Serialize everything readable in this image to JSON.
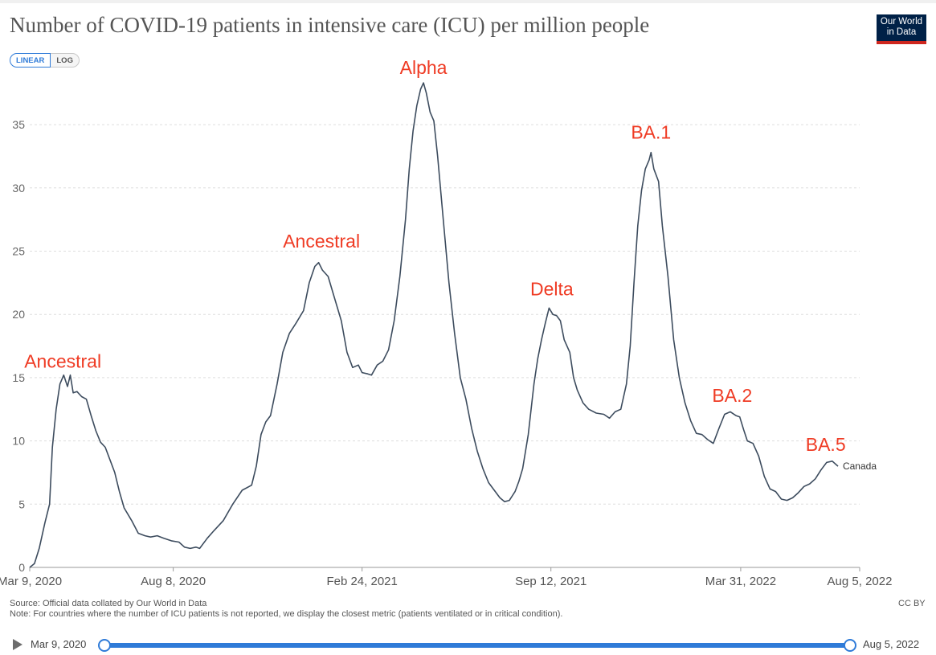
{
  "header": {
    "title": "Number of COVID-19 patients in intensive care (ICU) per million people",
    "logo_line1": "Our World",
    "logo_line2": "in Data"
  },
  "controls": {
    "linear_label": "LINEAR",
    "log_label": "LOG"
  },
  "footer": {
    "source": "Source: Official data collated by Our World in Data",
    "note": "Note: For countries where the number of ICU patients is not reported, we display the closest metric (patients ventilated or in critical condition).",
    "license": "CC BY"
  },
  "timeline": {
    "start_label": "Mar 9, 2020",
    "end_label": "Aug 5, 2022"
  },
  "colors": {
    "line": "#3d4c5e",
    "annotation": "#ef3b24",
    "accent": "#2f7bd8",
    "grid": "#dddddd"
  },
  "chart_data": {
    "type": "line",
    "title": "Number of COVID-19 patients in intensive care (ICU) per million people",
    "xlabel": "",
    "ylabel": "",
    "ylim": [
      0,
      38.5
    ],
    "yticks": [
      0,
      5,
      10,
      15,
      20,
      25,
      30,
      35
    ],
    "xlim_days": [
      0,
      879
    ],
    "xticks": [
      {
        "day": 0,
        "label": "Mar 9, 2020"
      },
      {
        "day": 152,
        "label": "Aug 8, 2020"
      },
      {
        "day": 352,
        "label": "Feb 24, 2021"
      },
      {
        "day": 552,
        "label": "Sep 12, 2021"
      },
      {
        "day": 753,
        "label": "Mar 31, 2022"
      },
      {
        "day": 879,
        "label": "Aug 5, 2022"
      }
    ],
    "grid": true,
    "series": [
      {
        "name": "Canada",
        "points": [
          [
            0,
            0
          ],
          [
            5,
            0.3
          ],
          [
            10,
            1.5
          ],
          [
            16,
            3.5
          ],
          [
            21,
            5
          ],
          [
            24,
            9.5
          ],
          [
            28,
            12.5
          ],
          [
            32,
            14.5
          ],
          [
            36,
            15.2
          ],
          [
            40,
            14.3
          ],
          [
            43,
            15.2
          ],
          [
            46,
            13.8
          ],
          [
            50,
            13.9
          ],
          [
            55,
            13.5
          ],
          [
            60,
            13.3
          ],
          [
            65,
            12
          ],
          [
            70,
            10.8
          ],
          [
            75,
            9.9
          ],
          [
            80,
            9.5
          ],
          [
            85,
            8.5
          ],
          [
            90,
            7.5
          ],
          [
            95,
            6
          ],
          [
            100,
            4.7
          ],
          [
            108,
            3.7
          ],
          [
            115,
            2.7
          ],
          [
            122,
            2.5
          ],
          [
            128,
            2.4
          ],
          [
            135,
            2.5
          ],
          [
            142,
            2.3
          ],
          [
            150,
            2.1
          ],
          [
            158,
            2.0
          ],
          [
            164,
            1.6
          ],
          [
            170,
            1.5
          ],
          [
            176,
            1.6
          ],
          [
            180,
            1.5
          ],
          [
            188,
            2.3
          ],
          [
            195,
            2.9
          ],
          [
            205,
            3.7
          ],
          [
            215,
            5.0
          ],
          [
            225,
            6.1
          ],
          [
            235,
            6.5
          ],
          [
            240,
            8
          ],
          [
            245,
            10.5
          ],
          [
            250,
            11.5
          ],
          [
            255,
            12
          ],
          [
            262,
            14.5
          ],
          [
            268,
            17.0
          ],
          [
            275,
            18.5
          ],
          [
            282,
            19.3
          ],
          [
            290,
            20.3
          ],
          [
            296,
            22.5
          ],
          [
            302,
            23.8
          ],
          [
            306,
            24.1
          ],
          [
            310,
            23.5
          ],
          [
            316,
            23.0
          ],
          [
            322,
            21.5
          ],
          [
            330,
            19.5
          ],
          [
            336,
            17.0
          ],
          [
            342,
            15.8
          ],
          [
            348,
            16.0
          ],
          [
            352,
            15.4
          ],
          [
            358,
            15.3
          ],
          [
            362,
            15.2
          ],
          [
            368,
            16.0
          ],
          [
            374,
            16.3
          ],
          [
            380,
            17.2
          ],
          [
            386,
            19.5
          ],
          [
            392,
            23.0
          ],
          [
            398,
            27.5
          ],
          [
            402,
            31.5
          ],
          [
            406,
            34.5
          ],
          [
            410,
            36.5
          ],
          [
            414,
            37.8
          ],
          [
            417,
            38.3
          ],
          [
            420,
            37.5
          ],
          [
            424,
            36.0
          ],
          [
            428,
            35.3
          ],
          [
            432,
            32.5
          ],
          [
            438,
            27.5
          ],
          [
            444,
            22.5
          ],
          [
            450,
            18.5
          ],
          [
            456,
            15.0
          ],
          [
            462,
            13.3
          ],
          [
            468,
            11.0
          ],
          [
            474,
            9.2
          ],
          [
            480,
            7.8
          ],
          [
            486,
            6.7
          ],
          [
            492,
            6.1
          ],
          [
            498,
            5.5
          ],
          [
            503,
            5.2
          ],
          [
            508,
            5.3
          ],
          [
            514,
            6.0
          ],
          [
            518,
            6.8
          ],
          [
            522,
            7.8
          ],
          [
            528,
            10.5
          ],
          [
            534,
            14.5
          ],
          [
            538,
            16.5
          ],
          [
            542,
            18.0
          ],
          [
            546,
            19.3
          ],
          [
            550,
            20.5
          ],
          [
            554,
            20.0
          ],
          [
            558,
            19.9
          ],
          [
            562,
            19.5
          ],
          [
            566,
            18.0
          ],
          [
            572,
            17.0
          ],
          [
            576,
            15.0
          ],
          [
            580,
            14.0
          ],
          [
            586,
            13.0
          ],
          [
            592,
            12.5
          ],
          [
            600,
            12.2
          ],
          [
            608,
            12.1
          ],
          [
            614,
            11.8
          ],
          [
            620,
            12.3
          ],
          [
            626,
            12.5
          ],
          [
            632,
            14.5
          ],
          [
            636,
            17.5
          ],
          [
            640,
            22.5
          ],
          [
            644,
            27.0
          ],
          [
            648,
            29.8
          ],
          [
            652,
            31.5
          ],
          [
            656,
            32.2
          ],
          [
            658,
            32.8
          ],
          [
            661,
            31.5
          ],
          [
            666,
            30.5
          ],
          [
            670,
            27.0
          ],
          [
            676,
            23.0
          ],
          [
            682,
            18.0
          ],
          [
            688,
            15.0
          ],
          [
            694,
            13.0
          ],
          [
            700,
            11.6
          ],
          [
            706,
            10.6
          ],
          [
            712,
            10.5
          ],
          [
            718,
            10.1
          ],
          [
            724,
            9.8
          ],
          [
            730,
            11.0
          ],
          [
            736,
            12.1
          ],
          [
            742,
            12.3
          ],
          [
            748,
            12.0
          ],
          [
            752,
            11.9
          ],
          [
            756,
            10.9
          ],
          [
            760,
            10.0
          ],
          [
            766,
            9.8
          ],
          [
            772,
            8.8
          ],
          [
            778,
            7.2
          ],
          [
            784,
            6.2
          ],
          [
            790,
            6.0
          ],
          [
            796,
            5.4
          ],
          [
            802,
            5.3
          ],
          [
            808,
            5.5
          ],
          [
            814,
            5.9
          ],
          [
            820,
            6.4
          ],
          [
            826,
            6.6
          ],
          [
            832,
            7.0
          ],
          [
            838,
            7.7
          ],
          [
            844,
            8.3
          ],
          [
            850,
            8.4
          ],
          [
            856,
            8.0
          ]
        ]
      }
    ],
    "series_label": "Canada",
    "annotations": [
      {
        "text": "Ancestral",
        "day": 35,
        "value": 15.8
      },
      {
        "text": "Ancestral",
        "day": 309,
        "value": 25.3
      },
      {
        "text": "Alpha",
        "day": 417,
        "value": 39.0
      },
      {
        "text": "Delta",
        "day": 553,
        "value": 21.5
      },
      {
        "text": "BA.1",
        "day": 658,
        "value": 33.9
      },
      {
        "text": "BA.2",
        "day": 744,
        "value": 13.1
      },
      {
        "text": "BA.5",
        "day": 843,
        "value": 9.2
      }
    ]
  }
}
